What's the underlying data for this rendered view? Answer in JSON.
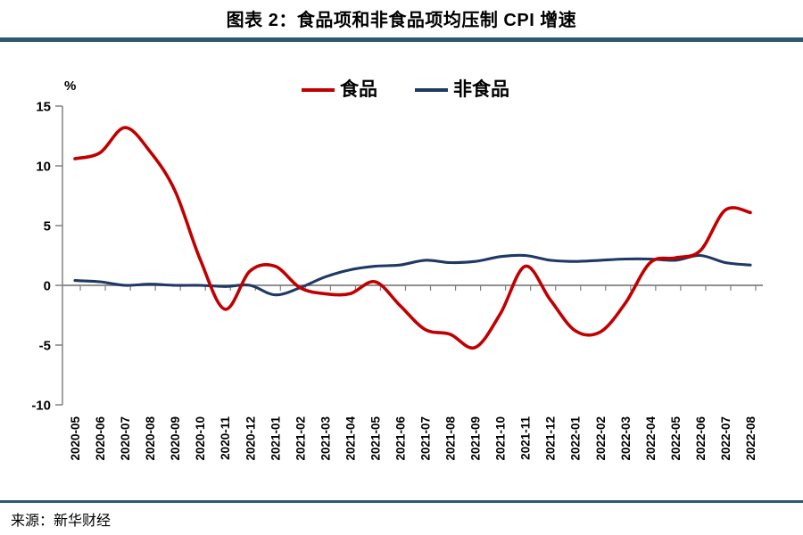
{
  "page": {
    "title": "图表 2：食品项和非食品项均压制 CPI 增速",
    "source": "来源：新华财经",
    "accent_bar_color": "#2C5871",
    "axis_color": "#808080"
  },
  "chart_data": {
    "type": "line",
    "title": "图表 2：食品项和非食品项均压制 CPI 增速",
    "unit_label": "%",
    "xlabel": "",
    "ylabel": "%",
    "ylim": [
      -10,
      15
    ],
    "yticks": [
      15,
      10,
      5,
      0,
      -5,
      -10
    ],
    "grid": false,
    "legend_position": "top-center",
    "smooth_lines": true,
    "categories": [
      "2020-05",
      "2020-06",
      "2020-07",
      "2020-08",
      "2020-09",
      "2020-10",
      "2020-11",
      "2020-12",
      "2021-01",
      "2021-02",
      "2021-03",
      "2021-04",
      "2021-05",
      "2021-06",
      "2021-07",
      "2021-08",
      "2021-09",
      "2021-10",
      "2021-11",
      "2021-12",
      "2022-01",
      "2022-02",
      "2022-03",
      "2022-04",
      "2022-05",
      "2022-06",
      "2022-07",
      "2022-08"
    ],
    "series": [
      {
        "name": "食品",
        "color": "#C00000",
        "values": [
          10.6,
          11.1,
          13.2,
          11.2,
          7.9,
          2.2,
          -2.0,
          1.2,
          1.6,
          -0.2,
          -0.7,
          -0.7,
          0.3,
          -1.7,
          -3.7,
          -4.1,
          -5.2,
          -2.4,
          1.6,
          -1.2,
          -3.8,
          -3.9,
          -1.5,
          1.9,
          2.3,
          2.9,
          6.3,
          6.1
        ]
      },
      {
        "name": "非食品",
        "color": "#1F3864",
        "values": [
          0.4,
          0.3,
          0.0,
          0.1,
          0.0,
          0.0,
          -0.1,
          0.0,
          -0.8,
          -0.2,
          0.7,
          1.3,
          1.6,
          1.7,
          2.1,
          1.9,
          2.0,
          2.4,
          2.5,
          2.1,
          2.0,
          2.1,
          2.2,
          2.2,
          2.1,
          2.5,
          1.9,
          1.7
        ]
      }
    ],
    "source": "来源：新华财经"
  }
}
